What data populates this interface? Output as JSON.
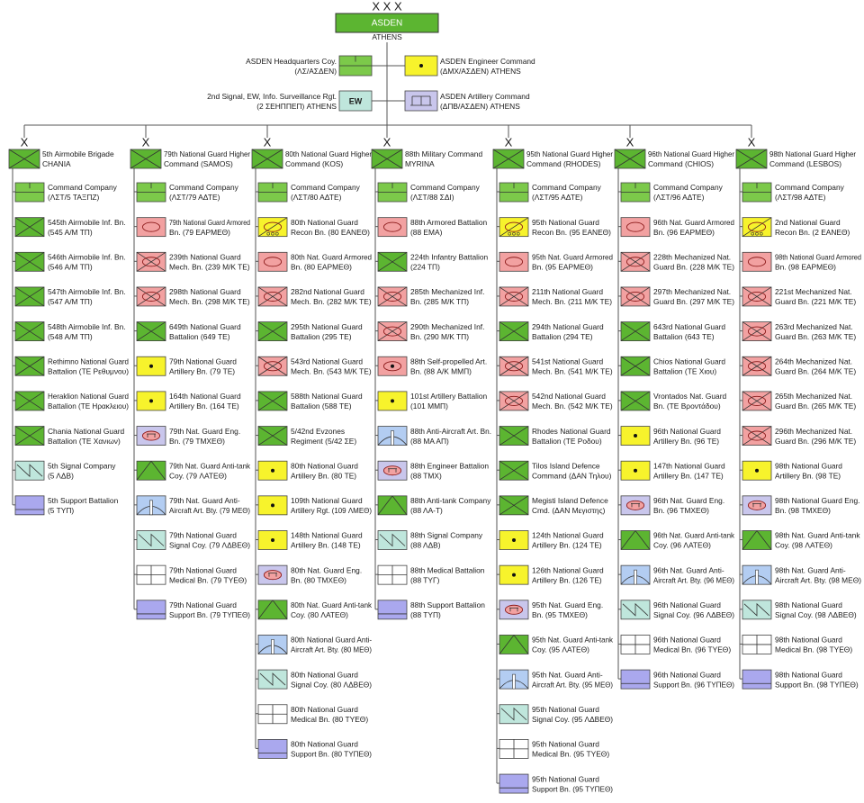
{
  "top": {
    "echelon": "X X X",
    "name": "ASDEN",
    "location": "ATHENS"
  },
  "staff": [
    {
      "lines": [
        "ASDEN Headquarters Coy.",
        "(ΛΣ/ΑΣΔΕΝ)"
      ]
    },
    {
      "lines": [
        "ASDEN Engineer Command",
        "(ΔΜΧ/ΑΣΔΕΝ) ATHENS"
      ]
    },
    {
      "lines": [
        "2nd Signal, EW, Info. Surveillance Rgt.",
        "(2 ΣΕΗΠΠΕΠ) ATHENS"
      ],
      "symbol_text": "EW"
    },
    {
      "lines": [
        "ASDEN Artillery Command",
        "(ΔΠΒ/ΑΣΔΕΝ) ATHENS"
      ]
    }
  ],
  "columns": [
    {
      "echelon": "X",
      "head": [
        "5th Airmobile Brigade",
        "CHANIA"
      ],
      "units": [
        [
          "Command Company",
          "(ΛΣΤ/5 ΤΑΞΠΖ)"
        ],
        [
          "545th Airmobile Inf. Bn.",
          "(545 Α/Μ ΤΠ)"
        ],
        [
          "546th Airmobile Inf. Bn.",
          "(546 Α/Μ ΤΠ)"
        ],
        [
          "547th Airmobile Inf. Bn.",
          "(547 Α/Μ ΤΠ)"
        ],
        [
          "548th Airmobile Inf. Bn.",
          "(548 Α/Μ ΤΠ)"
        ],
        [
          "Rethimno National Guard",
          "Battalion (ΤΕ Ρεθυμνου)"
        ],
        [
          "Heraklion National Guard",
          "Battalion (ΤΕ Ηρακλειου)"
        ],
        [
          "Chania National Guard",
          "Battalion (ΤΕ Χανιων)"
        ],
        [
          "5th Signal Company",
          "(5 ΛΔΒ)"
        ],
        [
          "5th Support Battalion",
          "(5 ΤΥΠ)"
        ]
      ]
    },
    {
      "echelon": "X",
      "head": [
        "79th National Guard Higher",
        "Command (SAMOS)"
      ],
      "units": [
        [
          "Command Company",
          "(ΛΣΤ/79 ΑΔΤΕ)"
        ],
        [
          "79th National Guard Armored",
          "Bn. (79 ΕΑΡΜΕΘ)"
        ],
        [
          "239th National Guard",
          "Mech. Bn. (239 Μ/Κ ΤΕ)"
        ],
        [
          "298th National Guard",
          "Mech. Bn. (298 Μ/Κ ΤΕ)"
        ],
        [
          "649th National Guard",
          "Battalion (649 ΤΕ)"
        ],
        [
          "79th National Guard",
          "Artillery Bn. (79 ΤΕ)"
        ],
        [
          "164th National Guard",
          "Artillery Bn. (164 ΤΕ)"
        ],
        [
          "79th Nat. Guard Eng.",
          "Bn. (79 ΤΜΧΕΘ)"
        ],
        [
          "79th Nat. Guard Anti-tank",
          "Coy. (79 ΛΑΤΕΘ)"
        ],
        [
          "79th Nat. Guard Anti-",
          "Aircraft Art. Bty. (79 ΜΕΘ)"
        ],
        [
          "79th National Guard",
          "Signal Coy. (79 ΛΔΒΕΘ)"
        ],
        [
          "79th National Guard",
          "Medical Bn. (79 ΤΥΕΘ)"
        ],
        [
          "79th National Guard",
          "Support Bn. (79 ΤΥΠΕΘ)"
        ]
      ]
    },
    {
      "echelon": "X",
      "head": [
        "80th National Guard Higher",
        "Command (KOS)"
      ],
      "units": [
        [
          "Command Company",
          "(ΛΣΤ/80 ΑΔΤΕ)"
        ],
        [
          "80th National Guard",
          "Recon Bn. (80 ΕΑΝΕΘ)"
        ],
        [
          "80th Nat. Guard Armored",
          "Bn. (80 ΕΑΡΜΕΘ)"
        ],
        [
          "282nd National Guard",
          "Mech. Bn. (282 Μ/Κ ΤΕ)"
        ],
        [
          "295th National Guard",
          "Battalion (295 ΤΕ)"
        ],
        [
          "543rd National Guard",
          "Mech. Bn. (543 Μ/Κ ΤΕ)"
        ],
        [
          "588th National Guard",
          "Battalion (588 ΤΕ)"
        ],
        [
          "5/42nd Evzones",
          "Regiment (5/42 ΣΕ)"
        ],
        [
          "80th National Guard",
          "Artillery Bn. (80 ΤΕ)"
        ],
        [
          "109th National Guard",
          "Artillery Rgt. (109 ΛΜΕΘ)"
        ],
        [
          "148th National Guard",
          "Artillery Bn. (148 ΤΕ)"
        ],
        [
          "80th Nat. Guard Eng.",
          "Bn. (80 ΤΜΧΕΘ)"
        ],
        [
          "80th Nat. Guard Anti-tank",
          "Coy. (80 ΛΑΤΕΘ)"
        ],
        [
          "80th National Guard Anti-",
          "Aircraft Art. Bty. (80 ΜΕΘ)"
        ],
        [
          "80th National Guard",
          "Signal Coy. (80 ΛΔΒΕΘ)"
        ],
        [
          "80th National Guard",
          "Medical Bn. (80 ΤΥΕΘ)"
        ],
        [
          "80th National Guard",
          "Support Bn. (80 ΤΥΠΕΘ)"
        ]
      ]
    },
    {
      "echelon": "X",
      "head": [
        "88th Military Command",
        "MYRINA"
      ],
      "units": [
        [
          "Command Company",
          "(ΛΣΤ/88 ΣΔΙ)"
        ],
        [
          "88th Armored Battalion",
          "(88 ΕΜΑ)"
        ],
        [
          "224th Infantry Battalion",
          "(224 ΤΠ)"
        ],
        [
          "285th Mechanized Inf.",
          "Bn. (285 Μ/Κ ΤΠ)"
        ],
        [
          "290th Mechanized Inf.",
          "Bn. (290 Μ/Κ ΤΠ)"
        ],
        [
          "88th Self-propelled Art.",
          "Bn. (88 Α/Κ ΜΜΠ)"
        ],
        [
          "101st Artillery Battalion",
          "(101 ΜΜΠ)"
        ],
        [
          "88th Anti-Aircraft Art. Bn.",
          "(88 ΜΑ ΑΠ)"
        ],
        [
          "88th Engineer Battalion",
          "(88 ΤΜΧ)"
        ],
        [
          "88th Anti-tank Company",
          "(88 ΛΑ-Τ)"
        ],
        [
          "88th Signal Company",
          "(88 ΛΔΒ)"
        ],
        [
          "88th Medical Battalion",
          "(88 ΤΥΓ)"
        ],
        [
          "88th Support Battalion",
          "(88 ΤΥΠ)"
        ]
      ]
    },
    {
      "echelon": "X",
      "head": [
        "95th National Guard Higher",
        "Command (RHODES)"
      ],
      "units": [
        [
          "Command Company",
          "(ΛΣΤ/95 ΑΔΤΕ)"
        ],
        [
          "95th National Guard",
          "Recon Bn. (95 ΕΑΝΕΘ)"
        ],
        [
          "95th Nat. Guard Armored",
          "Bn. (95 ΕΑΡΜΕΘ)"
        ],
        [
          "211th National Guard",
          "Mech. Bn. (211 Μ/Κ ΤΕ)"
        ],
        [
          "294th National Guard",
          "Battalion (294 ΤΕ)"
        ],
        [
          "541st National Guard",
          "Mech. Bn. (541 Μ/Κ ΤΕ)"
        ],
        [
          "542nd National Guard",
          "Mech. Bn. (542 Μ/Κ ΤΕ)"
        ],
        [
          "Rhodes National Guard",
          "Battalion (ΤΕ Ροδου)"
        ],
        [
          "Tilos Island Defence",
          "Command (ΔΑΝ Τηλου)"
        ],
        [
          "Megisti Island Defence",
          "Cmd. (ΔΑΝ Μεγιστης)"
        ],
        [
          "124th National Guard",
          "Artillery Bn. (124 ΤΕ)"
        ],
        [
          "126th National Guard",
          "Artillery Bn. (126 ΤΕ)"
        ],
        [
          "95th Nat. Guard Eng.",
          "Bn. (95 ΤΜΧΕΘ)"
        ],
        [
          "95th Nat. Guard Anti-tank",
          "Coy. (95 ΛΑΤΕΘ)"
        ],
        [
          "95th Nat. Guard Anti-",
          "Aircraft Art. Bty. (95 ΜΕΘ)"
        ],
        [
          "95th National Guard",
          "Signal Coy. (95 ΛΔΒΕΘ)"
        ],
        [
          "95th National Guard",
          "Medical Bn. (95 ΤΥΕΘ)"
        ],
        [
          "95th National Guard",
          "Support Bn. (95 ΤΥΠΕΘ)"
        ]
      ]
    },
    {
      "echelon": "X",
      "head": [
        "96th National Guard Higher",
        "Command (CHIOS)"
      ],
      "units": [
        [
          "Command Company",
          "(ΛΣΤ/96 ΑΔΤΕ)"
        ],
        [
          "96th Nat. Guard Armored",
          "Bn. (96 ΕΑΡΜΕΘ)"
        ],
        [
          "228th Mechanized Nat.",
          "Guard Bn. (228 Μ/Κ ΤΕ)"
        ],
        [
          "297th Mechanized Nat.",
          "Guard Bn. (297 Μ/Κ ΤΕ)"
        ],
        [
          "643rd National Guard",
          "Battalion (643 ΤΕ)"
        ],
        [
          "Chios National Guard",
          "Battalion (ΤΕ Χιου)"
        ],
        [
          "Vrontados Nat. Guard",
          "Bn. (ΤΕ Βροντάδου)"
        ],
        [
          "96th National Guard",
          "Artillery Bn. (96 ΤΕ)"
        ],
        [
          "147th National Guard",
          "Artillery Bn. (147 ΤΕ)"
        ],
        [
          "96th Nat. Guard Eng.",
          "Bn. (96 ΤΜΧΕΘ)"
        ],
        [
          "96th Nat. Guard Anti-tank",
          "Coy. (96 ΛΑΤΕΘ)"
        ],
        [
          "96th Nat. Guard Anti-",
          "Aircraft Art. Bty. (96 ΜΕΘ)"
        ],
        [
          "96th National Guard",
          "Signal Coy. (96 ΛΔΒΕΘ)"
        ],
        [
          "96th National Guard",
          "Medical Bn. (96 ΤΥΕΘ)"
        ],
        [
          "96th National Guard",
          "Support Bn. (96 ΤΥΠΕΘ)"
        ]
      ]
    },
    {
      "echelon": "X",
      "head": [
        "98th National Guard Higher",
        "Command (LESBOS)"
      ],
      "units": [
        [
          "Command Company",
          "(ΛΣΤ/98 ΑΔΤΕ)"
        ],
        [
          "2nd National Guard",
          "Recon Bn. (2 ΕΑΝΕΘ)"
        ],
        [
          "98th National Guard Armored",
          "Bn. (98 ΕΑΡΜΕΘ)"
        ],
        [
          "221st Mechanized Nat.",
          "Guard Bn. (221 Μ/Κ ΤΕ)"
        ],
        [
          "263rd Mechanized Nat.",
          "Guard Bn. (263 Μ/Κ ΤΕ)"
        ],
        [
          "264th Mechanized Nat.",
          "Guard Bn. (264 Μ/Κ ΤΕ)"
        ],
        [
          "265th Mechanized Nat.",
          "Guard Bn. (265 Μ/Κ ΤΕ)"
        ],
        [
          "296th Mechanized Nat.",
          "Guard Bn. (296 Μ/Κ ΤΕ)"
        ],
        [
          "98th National Guard",
          "Artillery Bn. (98 ΤΕ)"
        ],
        [
          "98th National Guard Eng.",
          "Bn. (98 ΤΜΧΕΘ)"
        ],
        [
          "98th Nat. Guard Anti-tank",
          "Coy. (98 ΛΑΤΕΘ)"
        ],
        [
          "98th Nat. Guard Anti-",
          "Aircraft Art. Bty. (98 ΜΕΘ)"
        ],
        [
          "98th National Guard",
          "Signal Coy. (98 ΛΔΒΕΘ)"
        ],
        [
          "98th National Guard",
          "Medical Bn. (98 ΤΥΕΘ)"
        ],
        [
          "98th National Guard",
          "Support Bn. (98 ΤΥΠΕΘ)"
        ]
      ]
    }
  ]
}
